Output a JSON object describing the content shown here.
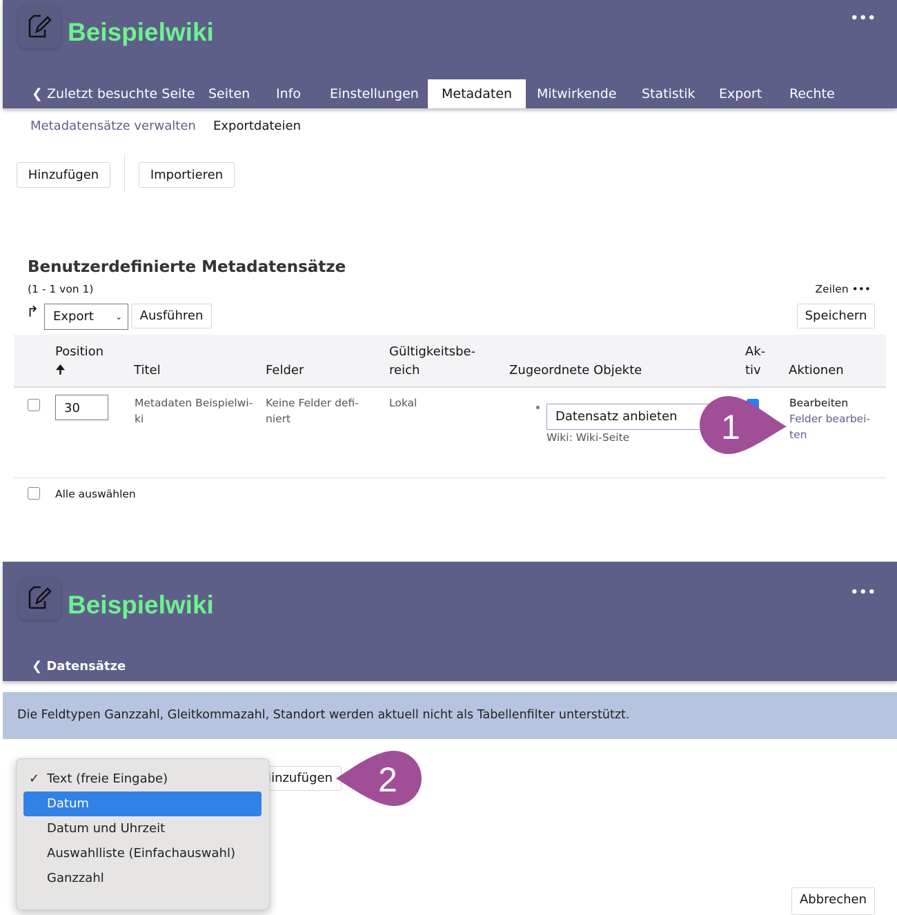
{
  "top": {
    "title": "Beispielwiki",
    "more": "•••",
    "tabs": [
      {
        "label": "Zuletzt besuchte Seite"
      },
      {
        "label": "Seiten"
      },
      {
        "label": "Info"
      },
      {
        "label": "Einstellungen"
      },
      {
        "label": "Metadaten",
        "active": true
      },
      {
        "label": "Mitwirkende"
      },
      {
        "label": "Statistik"
      },
      {
        "label": "Export"
      },
      {
        "label": "Rechte"
      }
    ],
    "subtabs": [
      "Metadatensätze verwalten",
      "Exportdateien"
    ],
    "toolbar": {
      "add": "Hinzufügen",
      "import": "Importieren"
    }
  },
  "table": {
    "heading": "Benutzerdefinierte Metadatensätze",
    "count": "(1 - 1 von 1)",
    "rows_label": "Zeilen •••",
    "action_select": "Export",
    "execute": "Ausführen",
    "save": "Speichern",
    "columns": {
      "position": "Position",
      "titel": "Titel",
      "felder": "Felder",
      "scope1": "Gültigkeitsbe-",
      "scope2": "reich",
      "objects": "Zugeordnete Objekte",
      "active1": "Ak-",
      "active2": "tiv",
      "actions": "Aktionen"
    },
    "rows": [
      {
        "position": "30",
        "title1": "Metadaten Beispielwi-",
        "title2": "ki",
        "fields1": "Keine Felder defi-",
        "fields2": "niert",
        "scope": "Lokal",
        "object_select": "Datensatz anbieten",
        "object_sub": "Wiki: Wiki-Seite",
        "active": true,
        "edit": "Bearbeiten",
        "edit_fields1": "Felder bearbei-",
        "edit_fields2": "ten"
      }
    ],
    "select_all": "Alle auswählen"
  },
  "callouts": [
    "1",
    "2"
  ],
  "bottom": {
    "title": "Beispielwiki",
    "more": "•••",
    "back": "Datensätze",
    "info": "Die Feldtypen Ganzzahl, Gleitkommazahl, Standort werden aktuell nicht als Tabellenfilter unterstützt.",
    "add": "Hinzufügen",
    "cancel": "Abbrechen",
    "dropdown": [
      {
        "label": "Text (freie Eingabe)",
        "checked": true
      },
      {
        "label": "Datum",
        "highlighted": true
      },
      {
        "label": "Datum und Uhrzeit"
      },
      {
        "label": "Auswahlliste (Einfachauswahl)"
      },
      {
        "label": "Ganzzahl"
      }
    ]
  },
  "colors": {
    "header": "#5e5f88",
    "title": "#6df28f",
    "link": "#5e5f88",
    "callout": "#a04e96",
    "highlight": "#3282e6",
    "info": "#b7c4e0"
  }
}
